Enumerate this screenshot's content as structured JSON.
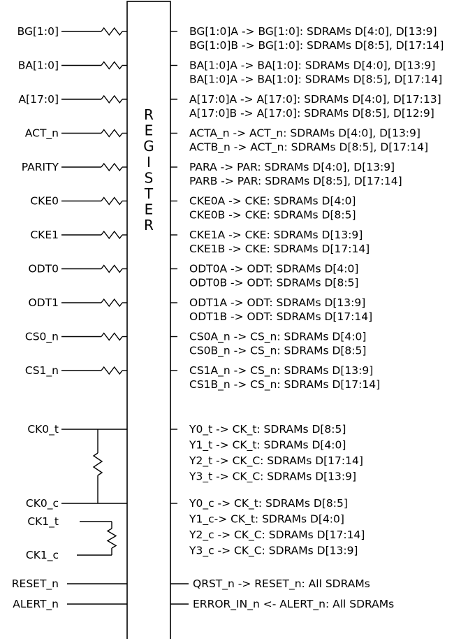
{
  "register": {
    "title_letters": [
      "R",
      "E",
      "G",
      "I",
      "S",
      "T",
      "E",
      "R"
    ]
  },
  "inputs": [
    {
      "label": "BG[1:0]",
      "resistor": true,
      "outputs": [
        "BG[1:0]A -> BG[1:0]: SDRAMs D[4:0], D[13:9]",
        "BG[1:0]B -> BG[1:0]: SDRAMs D[8:5], D[17:14]"
      ]
    },
    {
      "label": "BA[1:0]",
      "resistor": true,
      "outputs": [
        "BA[1:0]A -> BA[1:0]: SDRAMs D[4:0], D[13:9]",
        "BA[1:0]A -> BA[1:0]: SDRAMs D[8:5], D[17:14]"
      ]
    },
    {
      "label": "A[17:0]",
      "resistor": true,
      "outputs": [
        "A[17:0]A -> A[17:0]: SDRAMs D[4:0], D[17:13]",
        "A[17:0]B -> A[17:0]: SDRAMs D[8:5], D[12:9]"
      ]
    },
    {
      "label": "ACT_n",
      "resistor": true,
      "outputs": [
        "ACTA_n -> ACT_n: SDRAMs D[4:0], D[13:9]",
        "ACTB_n -> ACT_n: SDRAMs D[8:5], D[17:14]"
      ]
    },
    {
      "label": "PARITY",
      "resistor": true,
      "outputs": [
        "PARA -> PAR: SDRAMs D[4:0], D[13:9]",
        "PARB -> PAR: SDRAMs D[8:5], D[17:14]"
      ]
    },
    {
      "label": "CKE0",
      "resistor": true,
      "outputs": [
        "CKE0A -> CKE: SDRAMs D[4:0]",
        "CKE0B -> CKE: SDRAMs D[8:5]"
      ]
    },
    {
      "label": "CKE1",
      "resistor": true,
      "outputs": [
        "CKE1A -> CKE: SDRAMs D[13:9]",
        "CKE1B -> CKE: SDRAMs D[17:14]"
      ]
    },
    {
      "label": "ODT0",
      "resistor": true,
      "outputs": [
        "ODT0A -> ODT: SDRAMs D[4:0]",
        "ODT0B -> ODT: SDRAMs D[8:5]"
      ]
    },
    {
      "label": "ODT1",
      "resistor": true,
      "outputs": [
        "ODT1A -> ODT: SDRAMs D[13:9]",
        "ODT1B -> ODT: SDRAMs D[17:14]"
      ]
    },
    {
      "label": "CS0_n",
      "resistor": true,
      "outputs": [
        "CS0A_n -> CS_n: SDRAMs D[4:0]",
        "CS0B_n -> CS_n: SDRAMs D[8:5]"
      ]
    },
    {
      "label": "CS1_n",
      "resistor": true,
      "outputs": [
        "CS1A_n -> CS_n: SDRAMs D[13:9]",
        "CS1B_n -> CS_n: SDRAMs D[17:14]"
      ]
    }
  ],
  "clocks": {
    "ck0_t": {
      "label": "CK0_t",
      "outputs": [
        "Y0_t -> CK_t: SDRAMs D[8:5]",
        "Y1_t -> CK_t: SDRAMs D[4:0]",
        "Y2_t -> CK_C: SDRAMs D[17:14]",
        "Y3_t -> CK_C: SDRAMs D[13:9]"
      ]
    },
    "ck0_c": {
      "label": "CK0_c",
      "outputs": [
        "Y0_c -> CK_t: SDRAMs D[8:5]",
        "Y1_c-> CK_t: SDRAMs D[4:0]",
        "Y2_c -> CK_C: SDRAMs D[17:14]",
        "Y3_c -> CK_C: SDRAMs D[13:9]"
      ]
    },
    "ck1_t": {
      "label": "CK1_t"
    },
    "ck1_c": {
      "label": "CK1_c"
    }
  },
  "bottom_signals": [
    {
      "label": "RESET_n",
      "output": "QRST_n -> RESET_n: All SDRAMs"
    },
    {
      "label": "ALERT_n",
      "output": "ERROR_IN_n <- ALERT_n: All SDRAMs"
    }
  ]
}
